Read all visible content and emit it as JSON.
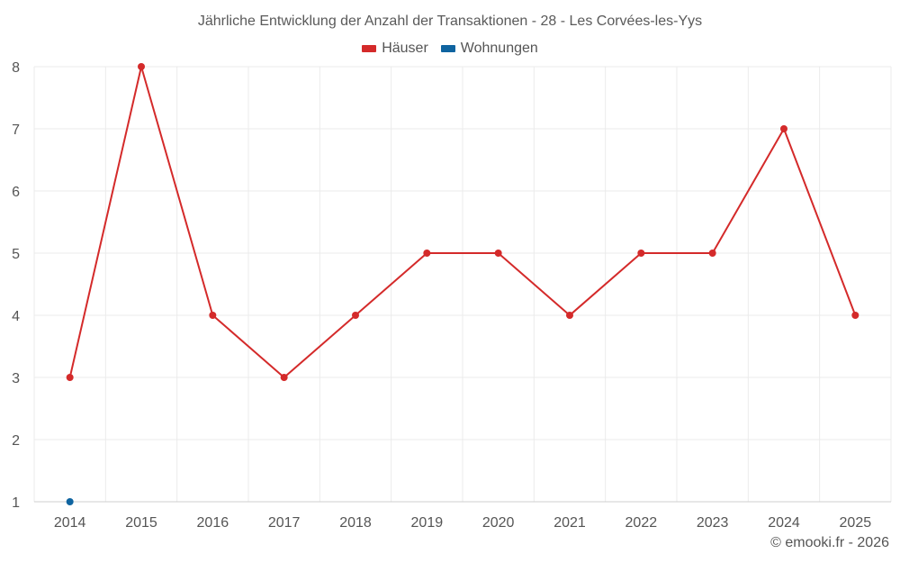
{
  "chart_data": {
    "type": "line",
    "title": "Jährliche Entwicklung der Anzahl der Transaktionen - 28 - Les Corvées-les-Yys",
    "categories": [
      "2014",
      "2015",
      "2016",
      "2017",
      "2018",
      "2019",
      "2020",
      "2021",
      "2022",
      "2023",
      "2024",
      "2025"
    ],
    "ylim": [
      1,
      8
    ],
    "yticks": [
      1,
      2,
      3,
      4,
      5,
      6,
      7,
      8
    ],
    "grid": true,
    "legend_position": "top-center",
    "series": [
      {
        "name": "Häuser",
        "color": "#d42a2a",
        "values": [
          3,
          8,
          4,
          3,
          4,
          5,
          5,
          4,
          5,
          5,
          7,
          4
        ]
      },
      {
        "name": "Wohnungen",
        "color": "#0f64a0",
        "values": [
          1,
          null,
          null,
          null,
          null,
          null,
          null,
          null,
          null,
          null,
          null,
          null
        ]
      }
    ]
  },
  "credit": "© emooki.fr - 2026"
}
